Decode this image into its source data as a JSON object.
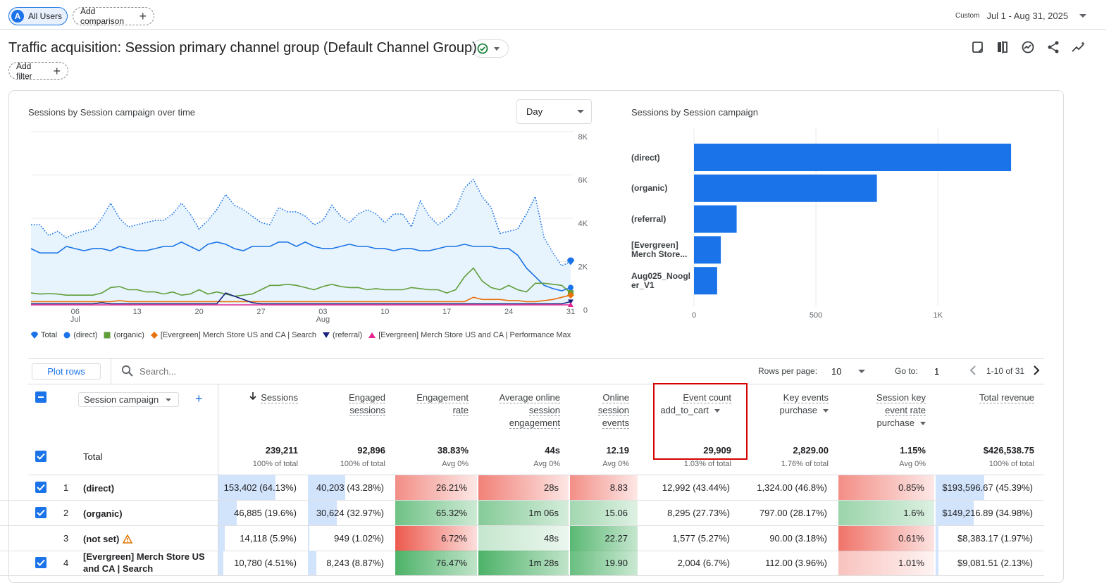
{
  "header": {
    "user_segment": {
      "avatar_letter": "A",
      "label": "All Users"
    },
    "add_comparison_label": "Add comparison",
    "date_range": {
      "badge": "Custom",
      "label": "Jul 1 - Aug 31, 2025"
    },
    "title": "Traffic acquisition: Session primary channel group (Default Channel Group)",
    "add_filter_label": "Add filter"
  },
  "line_chart": {
    "title": "Sessions by Session campaign over time",
    "granularity": "Day",
    "y_ticks": [
      "8K",
      "6K",
      "4K",
      "2K",
      "0"
    ],
    "x_ticks": [
      {
        "label": "06",
        "sub": "Jul"
      },
      {
        "label": "13",
        "sub": ""
      },
      {
        "label": "20",
        "sub": ""
      },
      {
        "label": "27",
        "sub": ""
      },
      {
        "label": "03",
        "sub": "Aug"
      },
      {
        "label": "10",
        "sub": ""
      },
      {
        "label": "17",
        "sub": ""
      },
      {
        "label": "24",
        "sub": ""
      },
      {
        "label": "31",
        "sub": ""
      }
    ],
    "legend": [
      {
        "name": "Total",
        "color": "#1a73e8",
        "shape": "pin"
      },
      {
        "name": "(direct)",
        "color": "#1a73e8",
        "shape": "circle"
      },
      {
        "name": "(organic)",
        "color": "#5f9e39",
        "shape": "square"
      },
      {
        "name": "[Evergreen] Merch Store US and CA | Search",
        "color": "#e8710a",
        "shape": "diamond"
      },
      {
        "name": "(referral)",
        "color": "#1a237e",
        "shape": "triangle-down"
      },
      {
        "name": "[Evergreen] Merch Store US and CA | Performance Max",
        "color": "#e52592",
        "shape": "triangle-up"
      }
    ]
  },
  "chart_data": [
    {
      "type": "line",
      "x_start": "Jul 1",
      "ylim": [
        0,
        8000
      ],
      "series": [
        {
          "name": "Total",
          "color": "#1a73e8",
          "style": "dotted-area",
          "values": [
            3700,
            3700,
            3200,
            3400,
            3100,
            3300,
            3400,
            3500,
            4000,
            4700,
            4000,
            3600,
            3700,
            3800,
            3900,
            3900,
            4200,
            4700,
            4200,
            3500,
            3900,
            4400,
            5100,
            4600,
            4400,
            4100,
            3800,
            3700,
            4500,
            4300,
            4300,
            4100,
            3700,
            3900,
            4600,
            4100,
            3800,
            4200,
            4400,
            4200,
            3800,
            4200,
            4200,
            3600,
            4800,
            4100,
            3700,
            4000,
            4400,
            5400,
            5800,
            5000,
            4500,
            3300,
            3400,
            3500,
            4200,
            5000,
            3100,
            2400,
            1800,
            2000
          ]
        },
        {
          "name": "(direct)",
          "color": "#1a73e8",
          "style": "solid",
          "values": [
            2600,
            2400,
            2400,
            2400,
            2700,
            2600,
            2500,
            2600,
            2600,
            2500,
            2700,
            2600,
            2500,
            2500,
            2600,
            2700,
            2700,
            2900,
            2700,
            2500,
            2800,
            2900,
            2800,
            2600,
            2500,
            2700,
            2700,
            2700,
            2900,
            2900,
            2700,
            2900,
            2700,
            2600,
            2600,
            2700,
            2800,
            2700,
            2700,
            2600,
            2600,
            2500,
            2600,
            2600,
            2500,
            2500,
            2600,
            2700,
            2700,
            2800,
            2700,
            2700,
            2700,
            2600,
            2600,
            2300,
            1700,
            1300,
            900,
            750,
            650,
            800
          ]
        },
        {
          "name": "(organic)",
          "color": "#5f9e39",
          "style": "solid",
          "values": [
            550,
            500,
            520,
            500,
            450,
            450,
            450,
            450,
            550,
            800,
            850,
            700,
            700,
            600,
            600,
            500,
            600,
            450,
            500,
            700,
            500,
            600,
            500,
            400,
            450,
            500,
            700,
            900,
            900,
            950,
            900,
            800,
            700,
            850,
            950,
            850,
            800,
            800,
            700,
            750,
            700,
            700,
            700,
            800,
            750,
            700,
            700,
            550,
            700,
            1300,
            1700,
            1100,
            800,
            700,
            900,
            700,
            600,
            1000,
            1000,
            950,
            900,
            550
          ]
        },
        {
          "name": "[Evergreen] Merch Store US and CA | Search",
          "color": "#e8710a",
          "style": "solid",
          "values": [
            150,
            150,
            150,
            150,
            150,
            150,
            150,
            150,
            150,
            150,
            200,
            150,
            150,
            150,
            150,
            150,
            150,
            150,
            150,
            150,
            150,
            150,
            150,
            150,
            150,
            150,
            150,
            150,
            150,
            150,
            150,
            150,
            150,
            150,
            150,
            150,
            150,
            150,
            150,
            150,
            150,
            150,
            150,
            150,
            150,
            150,
            150,
            150,
            150,
            150,
            350,
            250,
            250,
            250,
            200,
            200,
            150,
            150,
            200,
            250,
            350,
            450
          ]
        },
        {
          "name": "(referral)",
          "color": "#1a237e",
          "style": "solid",
          "values": [
            50,
            50,
            50,
            50,
            50,
            50,
            50,
            50,
            100,
            50,
            50,
            50,
            50,
            50,
            50,
            50,
            50,
            50,
            50,
            50,
            50,
            50,
            550,
            400,
            250,
            100,
            50,
            50,
            50,
            50,
            50,
            50,
            50,
            50,
            50,
            50,
            50,
            50,
            50,
            50,
            50,
            50,
            50,
            50,
            50,
            50,
            50,
            50,
            50,
            50,
            50,
            50,
            50,
            50,
            50,
            50,
            50,
            50,
            50,
            50,
            50,
            150
          ]
        },
        {
          "name": "[Evergreen] Merch Store US and CA | Performance Max",
          "color": "#e52592",
          "style": "solid",
          "values": [
            0,
            0,
            0,
            0,
            0,
            0,
            0,
            0,
            0,
            0,
            0,
            0,
            0,
            0,
            0,
            0,
            0,
            0,
            0,
            0,
            0,
            0,
            0,
            0,
            0,
            0,
            0,
            0,
            0,
            0,
            0,
            0,
            0,
            0,
            0,
            0,
            0,
            0,
            0,
            0,
            0,
            0,
            0,
            0,
            0,
            0,
            0,
            0,
            0,
            0,
            0,
            0,
            0,
            0,
            0,
            0,
            0,
            0,
            0,
            0,
            0,
            0
          ]
        }
      ]
    },
    {
      "type": "bar",
      "orientation": "horizontal",
      "title": "Sessions by Session campaign",
      "categories": [
        "(direct)",
        "(organic)",
        "(referral)",
        "[Evergreen] Merch Store...",
        "Aug025_Noogler_V1"
      ],
      "category_lines": [
        [
          "(direct)"
        ],
        [
          "(organic)"
        ],
        [
          "(referral)"
        ],
        [
          "[Evergreen]",
          "Merch Store..."
        ],
        [
          "Aug025_Noogl",
          "er_V1"
        ]
      ],
      "values": [
        1300,
        750,
        175,
        110,
        95
      ],
      "xlim": [
        0,
        1500
      ],
      "x_ticks": [
        "0",
        "500",
        "1K"
      ],
      "color": "#1a73e8"
    }
  ],
  "table": {
    "plot_rows_label": "Plot rows",
    "search_placeholder": "Search...",
    "rows_per_page_label": "Rows per page:",
    "rows_per_page": "10",
    "goto_label": "Go to:",
    "goto_value": "1",
    "page_range": "1-10 of 31",
    "dimension_label": "Session campaign",
    "total_label": "Total",
    "columns": [
      {
        "lines": [
          "Sessions"
        ],
        "sub": "",
        "total": "239,211",
        "pct": "100% of total",
        "sorted": true
      },
      {
        "lines": [
          "Engaged",
          "sessions"
        ],
        "sub": "",
        "total": "92,896",
        "pct": "100% of total"
      },
      {
        "lines": [
          "Engagement",
          "rate"
        ],
        "sub": "",
        "total": "38.83%",
        "pct": "Avg 0%"
      },
      {
        "lines": [
          "Average online",
          "session",
          "engagement"
        ],
        "sub": "",
        "total": "44s",
        "pct": "Avg 0%"
      },
      {
        "lines": [
          "Online",
          "session",
          "events"
        ],
        "sub": "",
        "total": "12.19",
        "pct": "Avg 0%"
      },
      {
        "lines": [
          "Event count"
        ],
        "sub": "add_to_cart",
        "total": "29,909",
        "pct": "1.03% of total"
      },
      {
        "lines": [
          "Key events"
        ],
        "sub": "purchase",
        "total": "2,829.00",
        "pct": "1.76% of total"
      },
      {
        "lines": [
          "Session key",
          "event rate"
        ],
        "sub": "purchase",
        "total": "1.15%",
        "pct": "Avg 0%"
      },
      {
        "lines": [
          "Total revenue"
        ],
        "sub": "",
        "total": "$426,538.75",
        "pct": "100% of total"
      }
    ],
    "rows": [
      {
        "num": "1",
        "name": [
          "(direct)"
        ],
        "checked": true,
        "warn": false,
        "cells": [
          "153,402 (64.13%)",
          "40,203 (43.28%)",
          "26.21%",
          "28s",
          "8.83",
          "12,992 (43.44%)",
          "1,324.00 (46.8%)",
          "0.85%",
          "$193,596.67 (45.39%)"
        ],
        "heat": [
          0.64,
          0.43,
          -0.5,
          -0.6,
          -0.5,
          0,
          0,
          -0.5,
          0.45
        ]
      },
      {
        "num": "2",
        "name": [
          "(organic)"
        ],
        "checked": true,
        "warn": false,
        "cells": [
          "46,885 (19.6%)",
          "30,624 (32.97%)",
          "65.32%",
          "1m 06s",
          "15.06",
          "8,295 (27.73%)",
          "797.00 (28.17%)",
          "1.6%",
          "$149,216.89 (34.98%)"
        ],
        "heat": [
          0.2,
          0.33,
          0.65,
          0.5,
          0.3,
          0,
          0,
          0.35,
          0.35
        ]
      },
      {
        "num": "3",
        "name": [
          "(not set)"
        ],
        "checked": false,
        "warn": true,
        "cells": [
          "14,118 (5.9%)",
          "949 (1.02%)",
          "6.72%",
          "48s",
          "22.27",
          "1,577 (5.27%)",
          "90.00 (3.18%)",
          "0.61%",
          "$8,383.17 (1.97%)"
        ],
        "heat": [
          0.06,
          0.01,
          -0.9,
          0.05,
          0.8,
          0,
          0,
          -0.7,
          0.02
        ]
      },
      {
        "num": "4",
        "name": [
          "[Evergreen] Merch Store US",
          "and CA | Search"
        ],
        "checked": true,
        "warn": false,
        "cells": [
          "10,780 (4.51%)",
          "8,243 (8.87%)",
          "76.47%",
          "1m 28s",
          "19.90",
          "2,004 (6.7%)",
          "112.00 (3.96%)",
          "1.01%",
          "$9,081.51 (2.13%)"
        ],
        "heat": [
          0.045,
          0.09,
          0.9,
          0.9,
          0.7,
          0,
          0,
          -0.1,
          0.02
        ]
      }
    ]
  }
}
